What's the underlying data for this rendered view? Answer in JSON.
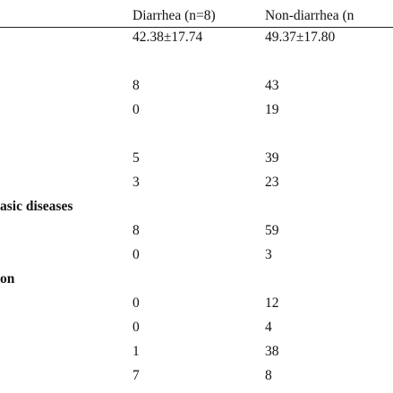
{
  "table": {
    "header": [
      "Diarrhea (n=8)",
      "Non-diarrhea (n"
    ],
    "rows": [
      {
        "values": [
          "42.38±17.74",
          "49.37±17.80"
        ]
      },
      {
        "values": [
          "8",
          "43"
        ]
      },
      {
        "values": [
          "0",
          "19"
        ]
      },
      {
        "values": [
          "5",
          "39"
        ]
      },
      {
        "values": [
          "3",
          "23"
        ]
      },
      {
        "heading": "asic diseases"
      },
      {
        "values": [
          "8",
          "59"
        ]
      },
      {
        "values": [
          "0",
          "3"
        ]
      },
      {
        "heading": "on"
      },
      {
        "values": [
          "0",
          "12"
        ]
      },
      {
        "values": [
          "0",
          "4"
        ]
      },
      {
        "values": [
          "1",
          "38"
        ]
      },
      {
        "values": [
          "7",
          "8"
        ]
      }
    ]
  }
}
